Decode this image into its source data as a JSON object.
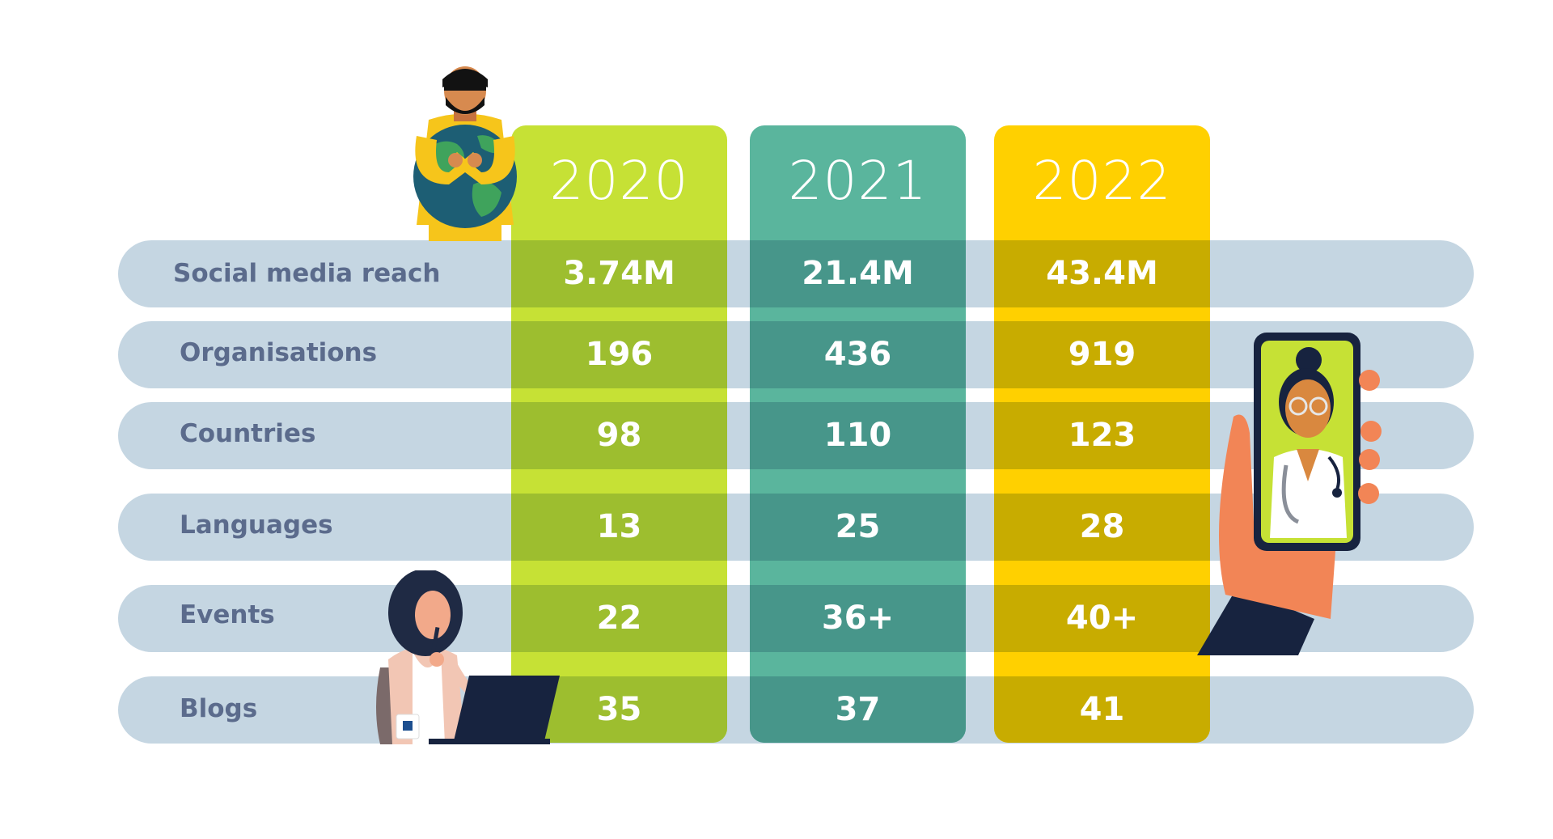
{
  "chart_data": {
    "type": "table",
    "columns": [
      {
        "year": "2020",
        "color": "#c6e135",
        "band": "#9dbe2f"
      },
      {
        "year": "2021",
        "color": "#5ab59d",
        "band": "#47968a"
      },
      {
        "year": "2022",
        "color": "#ffd000",
        "band": "#c8ac00"
      }
    ],
    "rows": [
      {
        "label": "Social media reach",
        "values": [
          "3.74M",
          "21.4M",
          "43.4M"
        ]
      },
      {
        "label": "Organisations",
        "values": [
          "196",
          "436",
          "919"
        ]
      },
      {
        "label": "Countries",
        "values": [
          "98",
          "110",
          "123"
        ]
      },
      {
        "label": "Languages",
        "values": [
          "13",
          "25",
          "28"
        ]
      },
      {
        "label": "Events",
        "values": [
          "22",
          "36+",
          "40+"
        ]
      },
      {
        "label": "Blogs",
        "values": [
          "35",
          "37",
          "41"
        ]
      }
    ]
  },
  "colors": {
    "row_background": "#c5d6e2",
    "label_text": "#5b6b8c",
    "value_text": "#ffffff"
  },
  "illustrations": [
    {
      "icon": "man-hugging-globe-icon"
    },
    {
      "icon": "woman-with-laptop-icon"
    },
    {
      "icon": "hand-holding-phone-doctor-icon"
    }
  ]
}
